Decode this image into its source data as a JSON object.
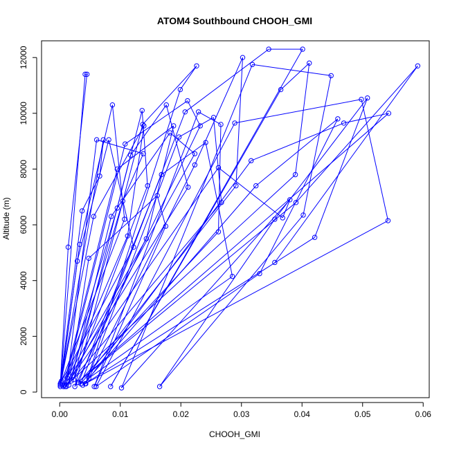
{
  "chart_data": {
    "type": "line",
    "title": "ATOM4 Southbound CHOOH_GMI",
    "xlabel": "CHOOH_GMI",
    "ylabel": "Altitude (m)",
    "xlim": [
      -0.003,
      0.061
    ],
    "ylim": [
      -200,
      12600
    ],
    "x_ticks": [
      "0.00",
      "0.01",
      "0.02",
      "0.03",
      "0.04",
      "0.05",
      "0.06"
    ],
    "y_ticks": [
      "0",
      "2000",
      "4000",
      "6000",
      "8000",
      "10000",
      "12000"
    ],
    "grid": false,
    "legend": "none",
    "series_color": "#0000ff",
    "marker": "open-circle",
    "series": [
      {
        "x": [
          0.0001,
          0.0042,
          0.0045,
          0.0014,
          0.0001,
          0.0037,
          0.0066,
          0.0072,
          0.0001,
          0.0033,
          0.0087,
          0.0107,
          0.0003,
          0.0029,
          0.0081,
          0.0122,
          0.0002,
          0.0056,
          0.0139,
          0.0112,
          0.0006,
          0.0095,
          0.0188,
          0.0143,
          0.0012,
          0.0095,
          0.0136,
          0.0145,
          0.0023,
          0.0117,
          0.0176,
          0.0212,
          0.0008,
          0.0108,
          0.0211,
          0.0232,
          0.0025,
          0.0137,
          0.0226,
          0.0199,
          0.0043,
          0.0197,
          0.0254,
          0.0267,
          0.0019,
          0.0085,
          0.0182,
          0.0223,
          0.0011,
          0.0061,
          0.0138,
          0.0104,
          0.0015,
          0.0048,
          0.0161,
          0.0175,
          0.0057,
          0.0229,
          0.0266,
          0.0262,
          0.0031,
          0.0168,
          0.0241,
          0.0285,
          0.0048,
          0.0223,
          0.0302,
          0.0291,
          0.0035,
          0.0207,
          0.0345,
          0.0401,
          0.0084,
          0.0365,
          0.0412,
          0.0389,
          0.0009,
          0.0262,
          0.0368,
          0.038,
          0.0102,
          0.0318,
          0.0448,
          0.0402,
          0.0165,
          0.0355,
          0.0508,
          0.0421,
          0.0038,
          0.0324,
          0.0459,
          0.033,
          0.006,
          0.0289,
          0.0498,
          0.0542,
          0.0042,
          0.0316,
          0.0469,
          0.0543,
          0.003,
          0.039,
          0.0591,
          0.0355
        ],
        "y": [
          250,
          11400,
          11400,
          5200,
          300,
          6500,
          7750,
          9050,
          200,
          5300,
          10300,
          6200,
          400,
          4700,
          9050,
          5200,
          350,
          6300,
          9550,
          5600,
          200,
          8000,
          9550,
          5500,
          500,
          6600,
          10100,
          7400,
          450,
          8500,
          10300,
          7350,
          250,
          8900,
          10450,
          9550,
          200,
          9600,
          11700,
          10850,
          300,
          9150,
          9850,
          6800,
          400,
          6300,
          9300,
          8550,
          200,
          9050,
          8550,
          6850,
          250,
          4800,
          7050,
          5950,
          200,
          10050,
          9600,
          5750,
          350,
          7800,
          8950,
          4150,
          500,
          8150,
          12000,
          7400,
          300,
          10050,
          12300,
          12300,
          200,
          10850,
          11800,
          7800,
          200,
          8050,
          6250,
          6900,
          150,
          11750,
          11350,
          6350,
          200,
          6200,
          10550,
          5550,
          250,
          7400,
          9800,
          4250,
          200,
          9650,
          10500,
          6150,
          300,
          8300,
          9650,
          10000,
          350,
          6800,
          11700,
          4650
        ]
      }
    ]
  }
}
